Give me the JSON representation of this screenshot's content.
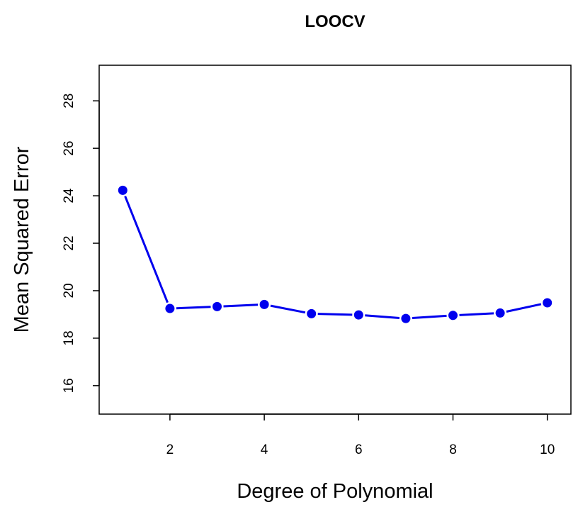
{
  "chart_data": {
    "type": "line",
    "title": "LOOCV",
    "xlabel": "Degree of Polynomial",
    "ylabel": "Mean Squared Error",
    "x": [
      1,
      2,
      3,
      4,
      5,
      6,
      7,
      8,
      9,
      10
    ],
    "series": [
      {
        "values": [
          24.23,
          19.25,
          19.33,
          19.42,
          19.03,
          18.98,
          18.83,
          18.96,
          19.06,
          19.49
        ]
      }
    ],
    "xlim": [
      0.5,
      10.5
    ],
    "ylim": [
      14.8,
      29.5
    ],
    "xticks": [
      2,
      4,
      6,
      8,
      10
    ],
    "yticks": [
      16,
      18,
      20,
      22,
      24,
      26,
      28
    ],
    "grid": false,
    "colors": {
      "series": "#0000ee",
      "frame": "#000000"
    }
  }
}
